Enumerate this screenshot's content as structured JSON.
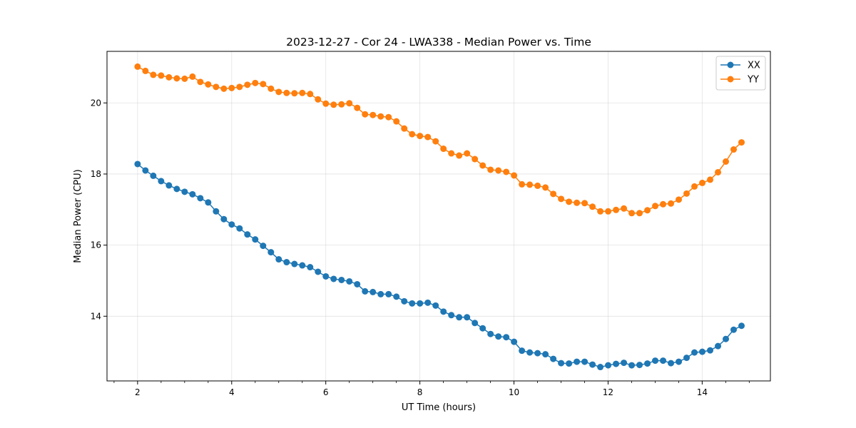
{
  "chart_data": {
    "type": "line",
    "title": "2023-12-27 - Cor 24 - LWA338 - Median Power vs. Time",
    "xlabel": "UT Time (hours)",
    "ylabel": "Median Power (CPU)",
    "xlim": [
      1.35,
      15.45
    ],
    "ylim": [
      12.18,
      21.45
    ],
    "xticks": [
      2,
      4,
      6,
      8,
      10,
      12,
      14
    ],
    "yticks": [
      14,
      16,
      18,
      20
    ],
    "x_minor_step": 0.5,
    "grid": true,
    "legend_position": "top-right",
    "x_start": 2.0,
    "x_step": 0.1667,
    "series": [
      {
        "name": "XX",
        "color": "#1f77b4",
        "values": [
          18.28,
          18.1,
          17.95,
          17.8,
          17.68,
          17.58,
          17.5,
          17.43,
          17.32,
          17.2,
          16.95,
          16.73,
          16.58,
          16.47,
          16.3,
          16.16,
          15.98,
          15.8,
          15.6,
          15.52,
          15.47,
          15.43,
          15.38,
          15.25,
          15.12,
          15.05,
          15.02,
          14.98,
          14.9,
          14.7,
          14.68,
          14.62,
          14.62,
          14.55,
          14.42,
          14.36,
          14.36,
          14.38,
          14.3,
          14.13,
          14.03,
          13.97,
          13.97,
          13.81,
          13.66,
          13.5,
          13.43,
          13.41,
          13.28,
          13.03,
          12.98,
          12.96,
          12.93,
          12.8,
          12.68,
          12.67,
          12.72,
          12.72,
          12.64,
          12.57,
          12.62,
          12.66,
          12.69,
          12.62,
          12.63,
          12.67,
          12.75,
          12.75,
          12.68,
          12.72,
          12.83,
          12.98,
          13.0,
          13.04,
          13.16,
          13.36,
          13.62,
          13.73
        ]
      },
      {
        "name": "YY",
        "color": "#ff7f0e",
        "values": [
          21.02,
          20.9,
          20.79,
          20.77,
          20.72,
          20.69,
          20.68,
          20.74,
          20.59,
          20.52,
          20.45,
          20.4,
          20.42,
          20.45,
          20.51,
          20.56,
          20.53,
          20.4,
          20.31,
          20.28,
          20.27,
          20.28,
          20.25,
          20.1,
          19.98,
          19.95,
          19.96,
          19.99,
          19.86,
          19.68,
          19.66,
          19.62,
          19.6,
          19.48,
          19.28,
          19.12,
          19.07,
          19.04,
          18.92,
          18.71,
          18.58,
          18.52,
          18.58,
          18.42,
          18.24,
          18.12,
          18.1,
          18.06,
          17.96,
          17.71,
          17.7,
          17.67,
          17.62,
          17.44,
          17.3,
          17.22,
          17.19,
          17.18,
          17.08,
          16.95,
          16.95,
          16.99,
          17.03,
          16.9,
          16.9,
          16.98,
          17.1,
          17.15,
          17.17,
          17.28,
          17.45,
          17.65,
          17.75,
          17.84,
          18.05,
          18.35,
          18.69,
          18.89
        ]
      }
    ]
  }
}
